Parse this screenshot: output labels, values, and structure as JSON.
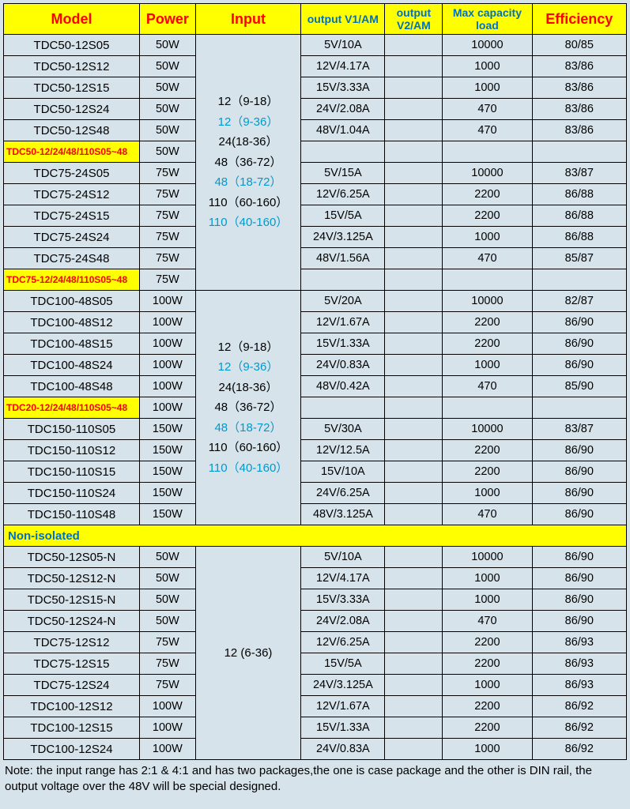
{
  "columns": [
    {
      "label": "Model",
      "class": "hdr-red",
      "width": "170"
    },
    {
      "label": "Power",
      "class": "hdr-red",
      "width": "70"
    },
    {
      "label": "Input",
      "class": "hdr-red",
      "width": "132"
    },
    {
      "label": "output V1/AM",
      "class": "hdr-blue",
      "width": "105"
    },
    {
      "label": "output V2/AM",
      "class": "hdr-blue",
      "width": "72"
    },
    {
      "label": "Max capacity load",
      "class": "hdr-blue",
      "width": "112"
    },
    {
      "label": "Efficiency",
      "class": "hdr-red",
      "width": "118"
    }
  ],
  "input_block_a": [
    {
      "t": "12（9-18）"
    },
    {
      "t": "12（9-36）",
      "blue": true
    },
    {
      "t": "24(18-36）"
    },
    {
      "t": "48（36-72）"
    },
    {
      "t": "48（18-72）",
      "blue": true
    },
    {
      "t": "110（60-160）"
    },
    {
      "t": "110（40-160）",
      "blue": true
    }
  ],
  "input_block_b": [
    {
      "t": "12  (6-36)"
    }
  ],
  "group_a": [
    {
      "model": "TDC50-12S05",
      "power": "50W",
      "v1": "5V/10A",
      "v2": "",
      "cap": "10000",
      "eff": "80/85"
    },
    {
      "model": "TDC50-12S12",
      "power": "50W",
      "v1": "12V/4.17A",
      "v2": "",
      "cap": "1000",
      "eff": "83/86"
    },
    {
      "model": "TDC50-12S15",
      "power": "50W",
      "v1": "15V/3.33A",
      "v2": "",
      "cap": "1000",
      "eff": "83/86"
    },
    {
      "model": "TDC50-12S24",
      "power": "50W",
      "v1": "24V/2.08A",
      "v2": "",
      "cap": "470",
      "eff": "83/86"
    },
    {
      "model": "TDC50-12S48",
      "power": "50W",
      "v1": "48V/1.04A",
      "v2": "",
      "cap": "470",
      "eff": "83/86"
    },
    {
      "model": "TDC50-12/24/48/110S05~48",
      "power": "50W",
      "v1": "",
      "v2": "",
      "cap": "",
      "eff": "",
      "hl": true
    },
    {
      "model": "TDC75-24S05",
      "power": "75W",
      "v1": "5V/15A",
      "v2": "",
      "cap": "10000",
      "eff": "83/87"
    },
    {
      "model": "TDC75-24S12",
      "power": "75W",
      "v1": "12V/6.25A",
      "v2": "",
      "cap": "2200",
      "eff": "86/88"
    },
    {
      "model": "TDC75-24S15",
      "power": "75W",
      "v1": "15V/5A",
      "v2": "",
      "cap": "2200",
      "eff": "86/88"
    },
    {
      "model": "TDC75-24S24",
      "power": "75W",
      "v1": "24V/3.125A",
      "v2": "",
      "cap": "1000",
      "eff": "86/88"
    },
    {
      "model": "TDC75-24S48",
      "power": "75W",
      "v1": "48V/1.56A",
      "v2": "",
      "cap": "470",
      "eff": "85/87"
    },
    {
      "model": "TDC75-12/24/48/110S05~48",
      "power": "75W",
      "v1": "",
      "v2": "",
      "cap": "",
      "eff": "",
      "hl": true
    }
  ],
  "group_b": [
    {
      "model": "TDC100-48S05",
      "power": "100W",
      "v1": "5V/20A",
      "v2": "",
      "cap": "10000",
      "eff": "82/87"
    },
    {
      "model": "TDC100-48S12",
      "power": "100W",
      "v1": "12V/1.67A",
      "v2": "",
      "cap": "2200",
      "eff": "86/90"
    },
    {
      "model": "TDC100-48S15",
      "power": "100W",
      "v1": "15V/1.33A",
      "v2": "",
      "cap": "2200",
      "eff": "86/90"
    },
    {
      "model": "TDC100-48S24",
      "power": "100W",
      "v1": "24V/0.83A",
      "v2": "",
      "cap": "1000",
      "eff": "86/90"
    },
    {
      "model": "TDC100-48S48",
      "power": "100W",
      "v1": "48V/0.42A",
      "v2": "",
      "cap": "470",
      "eff": "85/90"
    },
    {
      "model": "TDC20-12/24/48/110S05~48",
      "power": "100W",
      "v1": "",
      "v2": "",
      "cap": "",
      "eff": "",
      "hl": true
    },
    {
      "model": "TDC150-110S05",
      "power": "150W",
      "v1": "5V/30A",
      "v2": "",
      "cap": "10000",
      "eff": "83/87"
    },
    {
      "model": "TDC150-110S12",
      "power": "150W",
      "v1": "12V/12.5A",
      "v2": "",
      "cap": "2200",
      "eff": "86/90"
    },
    {
      "model": "TDC150-110S15",
      "power": "150W",
      "v1": "15V/10A",
      "v2": "",
      "cap": "2200",
      "eff": "86/90"
    },
    {
      "model": "TDC150-110S24",
      "power": "150W",
      "v1": "24V/6.25A",
      "v2": "",
      "cap": "1000",
      "eff": "86/90"
    },
    {
      "model": "TDC150-110S48",
      "power": "150W",
      "v1": "48V/3.125A",
      "v2": "",
      "cap": "470",
      "eff": "86/90"
    }
  ],
  "section_label": "Non-isolated",
  "group_c": [
    {
      "model": "TDC50-12S05-N",
      "power": "50W",
      "v1": "5V/10A",
      "v2": "",
      "cap": "10000",
      "eff": "86/90"
    },
    {
      "model": "TDC50-12S12-N",
      "power": "50W",
      "v1": "12V/4.17A",
      "v2": "",
      "cap": "1000",
      "eff": "86/90"
    },
    {
      "model": "TDC50-12S15-N",
      "power": "50W",
      "v1": "15V/3.33A",
      "v2": "",
      "cap": "1000",
      "eff": "86/90"
    },
    {
      "model": "TDC50-12S24-N",
      "power": "50W",
      "v1": "24V/2.08A",
      "v2": "",
      "cap": "470",
      "eff": "86/90"
    },
    {
      "model": "TDC75-12S12",
      "power": "75W",
      "v1": "12V/6.25A",
      "v2": "",
      "cap": "2200",
      "eff": "86/93"
    },
    {
      "model": "TDC75-12S15",
      "power": "75W",
      "v1": "15V/5A",
      "v2": "",
      "cap": "2200",
      "eff": "86/93"
    },
    {
      "model": "TDC75-12S24",
      "power": "75W",
      "v1": "24V/3.125A",
      "v2": "",
      "cap": "1000",
      "eff": "86/93"
    },
    {
      "model": "TDC100-12S12",
      "power": "100W",
      "v1": "12V/1.67A",
      "v2": "",
      "cap": "2200",
      "eff": "86/92"
    },
    {
      "model": "TDC100-12S15",
      "power": "100W",
      "v1": "15V/1.33A",
      "v2": "",
      "cap": "2200",
      "eff": "86/92"
    },
    {
      "model": "TDC100-12S24",
      "power": "100W",
      "v1": "24V/0.83A",
      "v2": "",
      "cap": "1000",
      "eff": "86/92"
    }
  ],
  "note": "Note: the input range has 2:1 & 4:1 and has two packages,the one is case package and the other is DIN rail, the output voltage over the 48V will be special designed."
}
